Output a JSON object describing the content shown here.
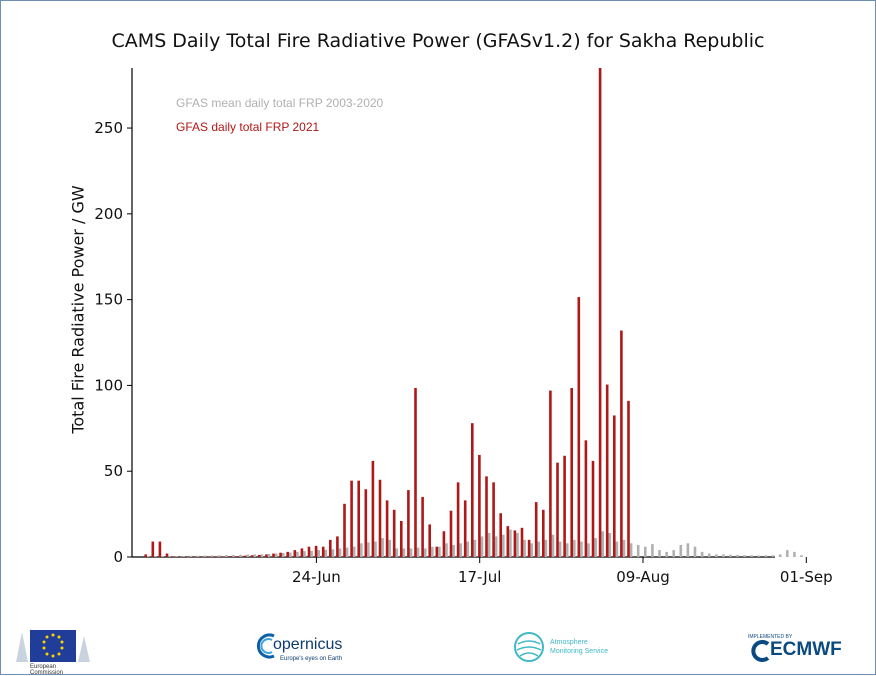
{
  "chart_data": {
    "type": "bar",
    "title": "CAMS Daily Total Fire Radiative Power (GFASv1.2) for Sakha Republic",
    "ylabel": "Total Fire Radiative Power / GW",
    "xlabel": "",
    "ylim": [
      0,
      285
    ],
    "yticks": [
      0,
      50,
      100,
      150,
      200,
      250
    ],
    "xticks": [
      {
        "label": "24-Jun",
        "day": 24
      },
      {
        "label": "17-Jul",
        "day": 47
      },
      {
        "label": "09-Aug",
        "day": 70
      },
      {
        "label": "01-Sep",
        "day": 93
      }
    ],
    "x_start": "2021-06-01",
    "legend": "top-left",
    "series": [
      {
        "name": "GFAS mean daily total FRP 2003-2020",
        "color": "#b0b0b0",
        "values": [
          0.4,
          0.5,
          0.5,
          0.6,
          0.6,
          0.6,
          0.7,
          0.7,
          0.8,
          0.9,
          1.0,
          1.1,
          1.2,
          1.3,
          1.4,
          1.5,
          1.6,
          1.8,
          2.0,
          2.3,
          2.6,
          3.0,
          3.4,
          3.6,
          4.0,
          4.2,
          4.5,
          5.0,
          5.5,
          6.0,
          8.0,
          8.5,
          9.0,
          11.0,
          10.0,
          5.0,
          5.0,
          5.0,
          5.5,
          5.0,
          6.0,
          6.0,
          8.0,
          7.0,
          8.0,
          9.0,
          10.0,
          12.0,
          14.0,
          12.0,
          13.0,
          16.0,
          14.0,
          10.0,
          8.0,
          9.0,
          10.0,
          13.0,
          9.0,
          8.0,
          10.0,
          9.0,
          8.0,
          11.0,
          15.0,
          14.0,
          9.0,
          10.0,
          8.0,
          7.0,
          6.0,
          7.5,
          4.0,
          3.0,
          4.0,
          7.0,
          8.0,
          6.0,
          3.0,
          2.0,
          1.5,
          1.5,
          1.3,
          1.2,
          1.0,
          1.0,
          0.9,
          1.0,
          1.0,
          1.5,
          4.0,
          3.0,
          1.0
        ]
      },
      {
        "name": "GFAS daily total FRP 2021",
        "color": "#b01818",
        "values": [
          1.5,
          9,
          9,
          2,
          0.3,
          0.2,
          0.2,
          0.2,
          0.2,
          0.3,
          0.3,
          0.3,
          0.5,
          0.5,
          0.8,
          1.0,
          1.2,
          1.5,
          2.0,
          2.5,
          3.0,
          4.0,
          5.0,
          6.0,
          6.5,
          6.0,
          10.0,
          12.0,
          31.0,
          44.5,
          44.5,
          39.5,
          56.0,
          45.0,
          33.0,
          27.5,
          21.0,
          39.0,
          98.5,
          35.0,
          19.0,
          6.0,
          15.0,
          27.0,
          43.5,
          33.0,
          78.0,
          59.5,
          47.0,
          43.5,
          25.5,
          18.0,
          15.5,
          17.0,
          10.0,
          32.0,
          27.5,
          97.0,
          55.0,
          59.0,
          98.5,
          151.5,
          68.0,
          56.0,
          285.0,
          100.5,
          82.5,
          132.0,
          91.0,
          0,
          0,
          0,
          0,
          0,
          0,
          0,
          0,
          0,
          0,
          0,
          0,
          0,
          0,
          0,
          0,
          0,
          0,
          0,
          0,
          0,
          0,
          0,
          0
        ]
      }
    ]
  },
  "logos": {
    "eu_line1": "European",
    "eu_line2": "Commission",
    "copernicus": "opernicus",
    "copernicus_tagline": "Europe's eyes on Earth",
    "ams_line1": "Atmosphere",
    "ams_line2": "Monitoring Service",
    "ecmwf_top": "IMPLEMENTED BY",
    "ecmwf": "ECMWF"
  }
}
